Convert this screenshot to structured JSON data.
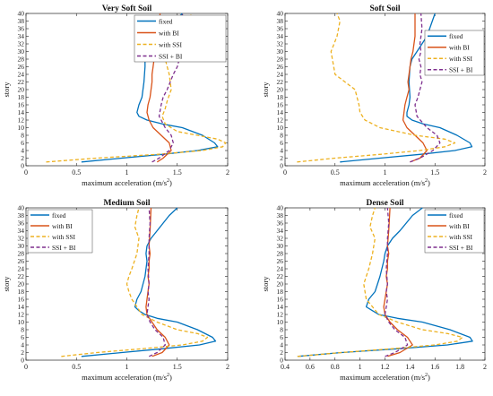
{
  "chart_data": [
    {
      "type": "line",
      "title": "Very Soft Soil",
      "xlabel": "maximum acceleration (m/s",
      "xlabel_sup": "2",
      "xlabel_tail": ")",
      "ylabel": "story",
      "xlim": [
        0,
        2
      ],
      "ylim": [
        0,
        40
      ],
      "xticks": [
        "0",
        "0.5",
        "1",
        "1.5",
        "2"
      ],
      "legend_position": "top-right",
      "series": [
        {
          "name": "fixed",
          "color": "#0072BD",
          "dash": "solid",
          "x": [
            0.55,
            0.95,
            1.35,
            1.7,
            1.9,
            1.87,
            1.75,
            1.55,
            1.35,
            1.2,
            1.12,
            1.1,
            1.12,
            1.15,
            1.17,
            1.18,
            1.18,
            1.2,
            1.28,
            1.38,
            1.48,
            1.55
          ],
          "y": [
            1,
            2,
            3,
            4,
            5,
            6,
            8,
            10,
            11,
            12,
            13,
            14,
            16,
            18,
            22,
            26,
            28,
            29,
            32,
            35,
            38,
            40
          ]
        },
        {
          "name": "with BI",
          "color": "#D95319",
          "dash": "solid",
          "x": [
            1.3,
            1.36,
            1.44,
            1.42,
            1.34,
            1.26,
            1.22,
            1.2,
            1.21,
            1.23,
            1.24,
            1.25,
            1.25,
            1.26,
            1.27,
            1.28,
            1.29,
            1.3,
            1.32,
            1.33
          ],
          "y": [
            1,
            2,
            4,
            6,
            8,
            10,
            12,
            14,
            16,
            18,
            20,
            22,
            24,
            26,
            28,
            30,
            32,
            34,
            37,
            40
          ]
        },
        {
          "name": "with SSI",
          "color": "#EDB120",
          "dash": "dashed",
          "x": [
            0.2,
            0.7,
            1.3,
            1.75,
            1.95,
            1.98,
            1.9,
            1.7,
            1.5,
            1.38,
            1.35,
            1.38,
            1.4,
            1.44,
            1.42,
            1.38,
            1.45,
            1.5,
            1.6,
            1.68,
            1.62
          ],
          "y": [
            1,
            2,
            3,
            4,
            5,
            6,
            7,
            8,
            9,
            11,
            13,
            15,
            17,
            20,
            24,
            28,
            30,
            32,
            35,
            38,
            40
          ]
        },
        {
          "name": "SSI + BI",
          "color": "#7E2F8E",
          "dash": "dashed",
          "x": [
            1.25,
            1.32,
            1.42,
            1.46,
            1.44,
            1.38,
            1.32,
            1.34,
            1.36,
            1.4,
            1.43,
            1.46,
            1.5,
            1.52,
            1.55,
            1.56,
            1.57,
            1.56,
            1.55
          ],
          "y": [
            1,
            2,
            4,
            6,
            8,
            10,
            13,
            16,
            18,
            20,
            22,
            24,
            26,
            28,
            30,
            32,
            35,
            38,
            40
          ]
        }
      ]
    },
    {
      "type": "line",
      "title": "Soft Soil",
      "xlabel": "maximum acceleration (m/s",
      "xlabel_sup": "2",
      "xlabel_tail": ")",
      "ylabel": "story",
      "xlim": [
        0,
        2
      ],
      "ylim": [
        0,
        40
      ],
      "xticks": [
        "0",
        "0.5",
        "1",
        "1.5",
        "2"
      ],
      "legend_position": "right",
      "series": [
        {
          "name": "fixed",
          "color": "#0072BD",
          "dash": "solid",
          "x": [
            0.55,
            0.95,
            1.35,
            1.7,
            1.87,
            1.85,
            1.72,
            1.55,
            1.38,
            1.27,
            1.22,
            1.22,
            1.24,
            1.25,
            1.24,
            1.25,
            1.27,
            1.32,
            1.42,
            1.5
          ],
          "y": [
            1,
            2,
            3,
            4,
            5,
            6,
            8,
            10,
            11,
            12,
            13,
            14,
            16,
            18,
            22,
            26,
            28,
            30,
            34,
            40
          ]
        },
        {
          "name": "with BI",
          "color": "#D95319",
          "dash": "solid",
          "x": [
            1.25,
            1.35,
            1.42,
            1.38,
            1.3,
            1.22,
            1.18,
            1.19,
            1.2,
            1.22,
            1.24,
            1.23,
            1.24,
            1.25,
            1.26,
            1.28,
            1.3,
            1.3
          ],
          "y": [
            1,
            2,
            4,
            6,
            8,
            10,
            12,
            14,
            16,
            18,
            20,
            22,
            24,
            26,
            28,
            30,
            34,
            40
          ]
        },
        {
          "name": "with SSI",
          "color": "#EDB120",
          "dash": "dashed",
          "x": [
            0.12,
            0.5,
            0.95,
            1.35,
            1.6,
            1.7,
            1.6,
            1.3,
            0.95,
            0.8,
            0.75,
            0.74,
            0.72,
            0.7,
            0.6,
            0.5,
            0.46,
            0.52,
            0.55,
            0.52
          ],
          "y": [
            1,
            2,
            3,
            4,
            5,
            6,
            7,
            8,
            10,
            12,
            14,
            16,
            18,
            20,
            22,
            24,
            30,
            34,
            38,
            40
          ]
        },
        {
          "name": "SSI + BI",
          "color": "#7E2F8E",
          "dash": "dashed",
          "x": [
            1.25,
            1.35,
            1.48,
            1.55,
            1.52,
            1.42,
            1.32,
            1.3,
            1.33,
            1.35,
            1.37,
            1.35,
            1.36,
            1.34,
            1.36,
            1.35,
            1.37,
            1.36
          ],
          "y": [
            1,
            2,
            4,
            6,
            8,
            10,
            13,
            16,
            18,
            20,
            22,
            24,
            26,
            28,
            30,
            32,
            36,
            40
          ]
        }
      ]
    },
    {
      "type": "line",
      "title": "Medium Soil",
      "xlabel": "maximum acceleration (m/s",
      "xlabel_sup": "2",
      "xlabel_tail": ")",
      "ylabel": "story",
      "xlim": [
        0,
        2
      ],
      "ylim": [
        0,
        40
      ],
      "xticks": [
        "0",
        "0.5",
        "1",
        "1.5",
        "2"
      ],
      "legend_position": "top-left",
      "series": [
        {
          "name": "fixed",
          "color": "#0072BD",
          "dash": "solid",
          "x": [
            0.55,
            0.95,
            1.35,
            1.72,
            1.88,
            1.85,
            1.7,
            1.5,
            1.3,
            1.18,
            1.12,
            1.08,
            1.1,
            1.14,
            1.18,
            1.2,
            1.19,
            1.2,
            1.24,
            1.3,
            1.42,
            1.5
          ],
          "y": [
            1,
            2,
            3,
            4,
            5,
            6,
            8,
            10,
            11,
            12,
            13,
            14,
            16,
            18,
            22,
            26,
            28,
            30,
            32,
            34,
            38,
            40
          ]
        },
        {
          "name": "with BI",
          "color": "#D95319",
          "dash": "solid",
          "x": [
            1.25,
            1.35,
            1.42,
            1.38,
            1.3,
            1.25,
            1.2,
            1.19,
            1.2,
            1.21,
            1.22,
            1.21,
            1.22,
            1.22,
            1.23,
            1.22,
            1.23,
            1.24
          ],
          "y": [
            1,
            2,
            4,
            6,
            8,
            10,
            12,
            14,
            16,
            18,
            20,
            22,
            24,
            26,
            28,
            30,
            34,
            40
          ]
        },
        {
          "name": "with SSI",
          "color": "#EDB120",
          "dash": "dashed",
          "x": [
            0.35,
            0.7,
            1.15,
            1.55,
            1.75,
            1.8,
            1.7,
            1.5,
            1.3,
            1.15,
            1.1,
            1.05,
            1.02,
            1.0,
            1.02,
            1.05,
            1.1,
            1.12,
            1.08,
            1.1,
            1.12
          ],
          "y": [
            1,
            2,
            3,
            4,
            5,
            6,
            7,
            8,
            10,
            12,
            14,
            16,
            18,
            20,
            22,
            24,
            28,
            32,
            35,
            38,
            40
          ]
        },
        {
          "name": "SSI + BI",
          "color": "#7E2F8E",
          "dash": "dashed",
          "x": [
            1.22,
            1.3,
            1.38,
            1.36,
            1.28,
            1.23,
            1.2,
            1.21,
            1.22,
            1.21,
            1.22,
            1.21,
            1.22,
            1.22,
            1.23,
            1.22
          ],
          "y": [
            1,
            2,
            4,
            6,
            8,
            10,
            12,
            14,
            16,
            18,
            20,
            24,
            28,
            32,
            36,
            40
          ]
        }
      ]
    },
    {
      "type": "line",
      "title": "Dense Soil",
      "xlabel": "maximum acceleration (m/s",
      "xlabel_sup": "2",
      "xlabel_tail": ")",
      "ylabel": "story",
      "xlim": [
        0.4,
        2
      ],
      "ylim": [
        0,
        40
      ],
      "xticks": [
        "0.4",
        "0.6",
        "0.8",
        "1",
        "1.2",
        "1.4",
        "1.6",
        "1.8",
        "2"
      ],
      "legend_position": "top-right",
      "series": [
        {
          "name": "fixed",
          "color": "#0072BD",
          "dash": "solid",
          "x": [
            0.5,
            0.85,
            1.3,
            1.7,
            1.9,
            1.88,
            1.72,
            1.5,
            1.3,
            1.15,
            1.1,
            1.05,
            1.07,
            1.12,
            1.16,
            1.19,
            1.2,
            1.22,
            1.26,
            1.32,
            1.42,
            1.5
          ],
          "y": [
            1,
            2,
            3,
            4,
            5,
            6,
            8,
            10,
            11,
            12,
            13,
            14,
            16,
            18,
            22,
            26,
            28,
            30,
            32,
            34,
            38,
            40
          ]
        },
        {
          "name": "with BI",
          "color": "#D95319",
          "dash": "solid",
          "x": [
            1.22,
            1.32,
            1.42,
            1.38,
            1.3,
            1.24,
            1.2,
            1.19,
            1.2,
            1.21,
            1.22,
            1.21,
            1.22,
            1.22,
            1.23,
            1.22,
            1.23,
            1.24
          ],
          "y": [
            1,
            2,
            4,
            6,
            8,
            10,
            12,
            14,
            16,
            18,
            20,
            22,
            24,
            26,
            28,
            30,
            34,
            40
          ]
        },
        {
          "name": "with SSI",
          "color": "#EDB120",
          "dash": "dashed",
          "x": [
            0.5,
            0.85,
            1.25,
            1.6,
            1.78,
            1.82,
            1.7,
            1.5,
            1.3,
            1.15,
            1.1,
            1.05,
            1.04,
            1.03,
            1.05,
            1.07,
            1.1,
            1.12,
            1.08,
            1.1,
            1.12
          ],
          "y": [
            1,
            2,
            3,
            4,
            5,
            6,
            7,
            8,
            10,
            12,
            14,
            16,
            18,
            20,
            22,
            24,
            28,
            32,
            35,
            38,
            40
          ]
        },
        {
          "name": "SSI + BI",
          "color": "#7E2F8E",
          "dash": "dashed",
          "x": [
            1.2,
            1.28,
            1.38,
            1.36,
            1.28,
            1.23,
            1.2,
            1.21,
            1.22,
            1.21,
            1.22,
            1.21,
            1.22,
            1.22,
            1.23,
            1.22
          ],
          "y": [
            1,
            2,
            4,
            6,
            8,
            10,
            12,
            14,
            16,
            18,
            20,
            24,
            28,
            32,
            36,
            40
          ]
        }
      ]
    }
  ]
}
